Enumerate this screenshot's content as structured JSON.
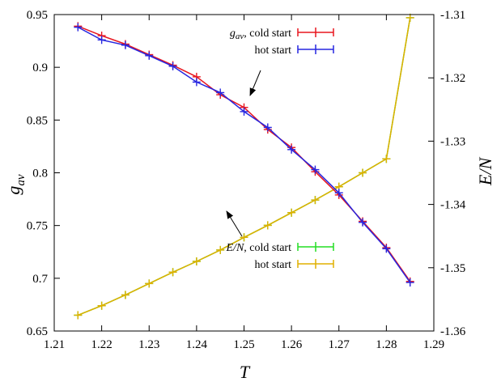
{
  "chart_data": {
    "type": "line",
    "xlabel": "T",
    "ylabel": "g_av",
    "y2label": "E/N",
    "xlim": [
      1.21,
      1.29
    ],
    "ylim": [
      0.65,
      0.95
    ],
    "y2lim": [
      -1.36,
      -1.31
    ],
    "x_ticks": [
      "1.21",
      "1.22",
      "1.23",
      "1.24",
      "1.25",
      "1.26",
      "1.27",
      "1.28",
      "1.29"
    ],
    "y_ticks": [
      "0.65",
      "0.7",
      "0.75",
      "0.8",
      "0.85",
      "0.9",
      "0.95"
    ],
    "y2_ticks": [
      "-1.36",
      "-1.35",
      "-1.34",
      "-1.33",
      "-1.32",
      "-1.31"
    ],
    "x": [
      1.215,
      1.22,
      1.225,
      1.23,
      1.235,
      1.24,
      1.245,
      1.25,
      1.255,
      1.26,
      1.265,
      1.27,
      1.275,
      1.28,
      1.285
    ],
    "series": [
      {
        "name": "g_av, cold start",
        "axis": "left",
        "color": "#e8161f",
        "values": [
          0.939,
          0.93,
          0.922,
          0.912,
          0.902,
          0.891,
          0.874,
          0.862,
          0.841,
          0.824,
          0.801,
          0.779,
          0.754,
          0.729,
          0.697
        ]
      },
      {
        "name": "hot start",
        "axis": "left",
        "color": "#2626e0",
        "values": [
          0.938,
          0.926,
          0.921,
          0.911,
          0.901,
          0.886,
          0.876,
          0.858,
          0.843,
          0.822,
          0.803,
          0.781,
          0.753,
          0.728,
          0.696
        ]
      },
      {
        "name": "E/N, cold start",
        "axis": "right",
        "color": "#22dd22",
        "values": [
          -1.3575,
          -1.356,
          -1.3543,
          -1.3525,
          -1.3507,
          -1.349,
          -1.3472,
          -1.3452,
          -1.3433,
          -1.3413,
          -1.3393,
          -1.3372,
          -1.335,
          -1.3328,
          -1.3105
        ]
      },
      {
        "name": "hot start",
        "axis": "right",
        "color": "#e0b000",
        "values": [
          -1.3575,
          -1.356,
          -1.3543,
          -1.3525,
          -1.3507,
          -1.349,
          -1.3472,
          -1.3452,
          -1.3433,
          -1.3413,
          -1.3393,
          -1.3372,
          -1.335,
          -1.3328,
          -1.3105
        ]
      }
    ],
    "legend": {
      "top": [
        {
          "label": "g",
          "sub": "av",
          "rest": ", cold start",
          "color": "#e8161f"
        },
        {
          "label": "hot start",
          "color": "#2626e0"
        }
      ],
      "bottom": [
        {
          "label": "E/N",
          "rest": ", cold start",
          "color": "#22dd22"
        },
        {
          "label": "hot start",
          "color": "#e0b000"
        }
      ]
    }
  }
}
